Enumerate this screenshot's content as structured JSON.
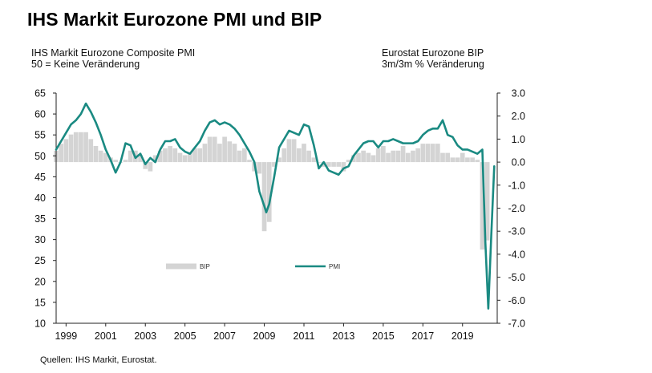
{
  "header": {
    "title": "IHS Markit Eurozone PMI und BIP"
  },
  "subtitles": {
    "left_line1": "IHS Markit Eurozone Composite PMI",
    "left_line2": "50 = Keine Veränderung",
    "right_line1": "Eurostat Eurozone BIP",
    "right_line2": "3m/3m % Veränderung"
  },
  "footer": {
    "source": "Quellen:  IHS Markit, Eurostat."
  },
  "chart_data": {
    "type": "line",
    "title": "IHS Markit Eurozone PMI und BIP",
    "legend": {
      "position": "center",
      "entries": [
        "BIP",
        "PMI"
      ]
    },
    "colors": {
      "pmi": "#1a8a82",
      "bip": "#d4d4d4"
    },
    "x_ticks": [
      "1999",
      "2001",
      "2003",
      "2005",
      "2007",
      "2009",
      "2011",
      "2013",
      "2015",
      "2017",
      "2019"
    ],
    "y_left": {
      "label": "IHS Markit Eurozone Composite PMI",
      "range": [
        10,
        65
      ],
      "ticks": [
        "65",
        "60",
        "55",
        "50",
        "45",
        "40",
        "35",
        "30",
        "25",
        "20",
        "15",
        "10"
      ]
    },
    "y_right": {
      "label": "Eurostat Eurozone BIP",
      "range": [
        -7.0,
        3.0
      ],
      "ticks": [
        "3.0",
        "2.0",
        "1.0",
        "0.0",
        "-1.0",
        "-2.0",
        "-3.0",
        "-4.0",
        "-5.0",
        "-6.0",
        "-7.0"
      ]
    },
    "series": [
      {
        "name": "PMI",
        "axis": "left",
        "type": "line",
        "x": [
          1998.5,
          1998.75,
          1999.0,
          1999.25,
          1999.5,
          1999.75,
          2000.0,
          2000.25,
          2000.5,
          2000.75,
          2001.0,
          2001.25,
          2001.5,
          2001.75,
          2002.0,
          2002.25,
          2002.5,
          2002.75,
          2003.0,
          2003.25,
          2003.5,
          2003.75,
          2004.0,
          2004.25,
          2004.5,
          2004.75,
          2005.0,
          2005.25,
          2005.5,
          2005.75,
          2006.0,
          2006.25,
          2006.5,
          2006.75,
          2007.0,
          2007.25,
          2007.5,
          2007.75,
          2008.0,
          2008.25,
          2008.5,
          2008.75,
          2009.0,
          2009.1,
          2009.25,
          2009.5,
          2009.75,
          2010.0,
          2010.25,
          2010.5,
          2010.75,
          2011.0,
          2011.25,
          2011.5,
          2011.75,
          2012.0,
          2012.25,
          2012.5,
          2012.75,
          2013.0,
          2013.25,
          2013.5,
          2013.75,
          2014.0,
          2014.25,
          2014.5,
          2014.75,
          2015.0,
          2015.25,
          2015.5,
          2015.75,
          2016.0,
          2016.25,
          2016.5,
          2016.75,
          2017.0,
          2017.25,
          2017.5,
          2017.75,
          2018.0,
          2018.25,
          2018.5,
          2018.75,
          2019.0,
          2019.25,
          2019.5,
          2019.75,
          2020.0,
          2020.15,
          2020.3,
          2020.45,
          2020.6
        ],
        "values": [
          51.5,
          53.5,
          55.5,
          57.5,
          58.5,
          60.0,
          62.5,
          60.5,
          58.0,
          55.0,
          51.5,
          49.0,
          46.0,
          48.5,
          53.0,
          52.5,
          49.5,
          50.5,
          48.0,
          49.5,
          48.5,
          51.5,
          53.5,
          53.5,
          54.0,
          52.0,
          51.0,
          50.5,
          52.0,
          53.5,
          56.0,
          58.0,
          58.5,
          57.5,
          58.0,
          57.5,
          56.5,
          55.0,
          53.0,
          51.0,
          48.5,
          41.5,
          38.0,
          36.5,
          38.5,
          45.0,
          52.0,
          54.0,
          56.0,
          55.5,
          55.0,
          57.5,
          57.0,
          52.5,
          47.0,
          48.5,
          46.5,
          46.0,
          45.5,
          47.0,
          47.5,
          50.0,
          51.5,
          53.0,
          53.5,
          53.5,
          52.0,
          53.5,
          53.5,
          54.0,
          53.5,
          53.0,
          53.0,
          53.0,
          53.5,
          55.0,
          56.0,
          56.5,
          56.5,
          58.5,
          55.0,
          54.5,
          52.5,
          51.5,
          51.5,
          51.0,
          50.5,
          51.5,
          29.5,
          13.5,
          31.0,
          47.5
        ]
      },
      {
        "name": "BIP",
        "axis": "right",
        "type": "bar",
        "x": [
          1998.5,
          1998.75,
          1999.0,
          1999.25,
          1999.5,
          1999.75,
          2000.0,
          2000.25,
          2000.5,
          2000.75,
          2001.0,
          2001.25,
          2001.5,
          2001.75,
          2002.0,
          2002.25,
          2002.5,
          2002.75,
          2003.0,
          2003.25,
          2003.5,
          2003.75,
          2004.0,
          2004.25,
          2004.5,
          2004.75,
          2005.0,
          2005.25,
          2005.5,
          2005.75,
          2006.0,
          2006.25,
          2006.5,
          2006.75,
          2007.0,
          2007.25,
          2007.5,
          2007.75,
          2008.0,
          2008.25,
          2008.5,
          2008.75,
          2009.0,
          2009.25,
          2009.5,
          2009.75,
          2010.0,
          2010.25,
          2010.5,
          2010.75,
          2011.0,
          2011.25,
          2011.5,
          2011.75,
          2012.0,
          2012.25,
          2012.5,
          2012.75,
          2013.0,
          2013.25,
          2013.5,
          2013.75,
          2014.0,
          2014.25,
          2014.5,
          2014.75,
          2015.0,
          2015.25,
          2015.5,
          2015.75,
          2016.0,
          2016.25,
          2016.5,
          2016.75,
          2017.0,
          2017.25,
          2017.5,
          2017.75,
          2018.0,
          2018.25,
          2018.5,
          2018.75,
          2019.0,
          2019.25,
          2019.5,
          2019.75,
          2020.0,
          2020.25
        ],
        "values": [
          0.5,
          0.8,
          1.0,
          1.2,
          1.3,
          1.3,
          1.3,
          1.0,
          0.7,
          0.5,
          0.4,
          0.2,
          0.1,
          0.0,
          0.1,
          0.5,
          0.5,
          0.3,
          -0.3,
          -0.4,
          0.3,
          0.5,
          0.6,
          0.7,
          0.6,
          0.4,
          0.3,
          0.4,
          0.6,
          0.6,
          0.8,
          1.1,
          1.1,
          0.8,
          1.1,
          0.9,
          0.8,
          0.5,
          0.6,
          0.1,
          -0.4,
          -0.5,
          -3.0,
          -2.6,
          -0.2,
          0.2,
          0.6,
          1.0,
          1.0,
          0.6,
          0.8,
          0.5,
          0.2,
          0.0,
          -0.2,
          -0.2,
          -0.2,
          -0.2,
          -0.4,
          0.1,
          0.3,
          0.4,
          0.5,
          0.4,
          0.3,
          0.6,
          0.7,
          0.4,
          0.5,
          0.5,
          0.7,
          0.4,
          0.5,
          0.6,
          0.8,
          0.8,
          0.8,
          0.8,
          0.4,
          0.4,
          0.2,
          0.2,
          0.4,
          0.2,
          0.2,
          0.1,
          -3.8,
          -3.4
        ]
      }
    ]
  }
}
